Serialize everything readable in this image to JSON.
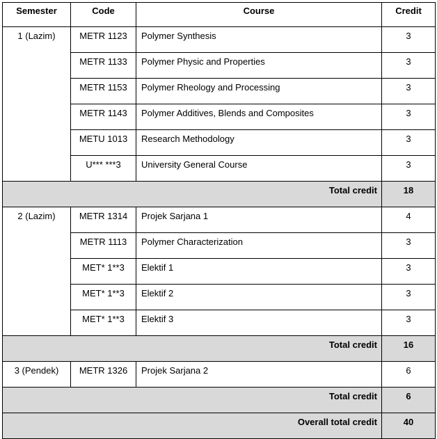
{
  "headers": {
    "semester": "Semester",
    "code": "Code",
    "course": "Course",
    "credit": "Credit"
  },
  "semesters": [
    {
      "label": "1 (Lazim)",
      "rows": [
        {
          "code": "METR 1123",
          "course": "Polymer Synthesis",
          "credit": "3"
        },
        {
          "code": "METR 1133",
          "course": "Polymer Physic and Properties",
          "credit": "3"
        },
        {
          "code": "METR 1153",
          "course": "Polymer Rheology and Processing",
          "credit": "3"
        },
        {
          "code": "METR 1143",
          "course": "Polymer Additives, Blends and Composites",
          "credit": "3"
        },
        {
          "code": "METU 1013",
          "course": "Research Methodology",
          "credit": "3"
        },
        {
          "code": "U*** ***3",
          "course": "University General Course",
          "credit": "3"
        }
      ],
      "total_label": "Total credit",
      "total": "18"
    },
    {
      "label": "2 (Lazim)",
      "rows": [
        {
          "code": "METR 1314",
          "course": "Projek Sarjana 1",
          "credit": "4"
        },
        {
          "code": "METR 1113",
          "course": "Polymer Characterization",
          "credit": "3"
        },
        {
          "code": "MET* 1**3",
          "course": "Elektif 1",
          "credit": "3"
        },
        {
          "code": "MET* 1**3",
          "course": "Elektif 2",
          "credit": "3"
        },
        {
          "code": "MET* 1**3",
          "course": "Elektif 3",
          "credit": "3"
        }
      ],
      "total_label": "Total credit",
      "total": "16"
    },
    {
      "label": "3 (Pendek)",
      "rows": [
        {
          "code": "METR 1326",
          "course": "Projek Sarjana 2",
          "credit": "6"
        }
      ],
      "total_label": "Total credit",
      "total": "6"
    }
  ],
  "overall": {
    "label": "Overall total credit",
    "value": "40"
  }
}
